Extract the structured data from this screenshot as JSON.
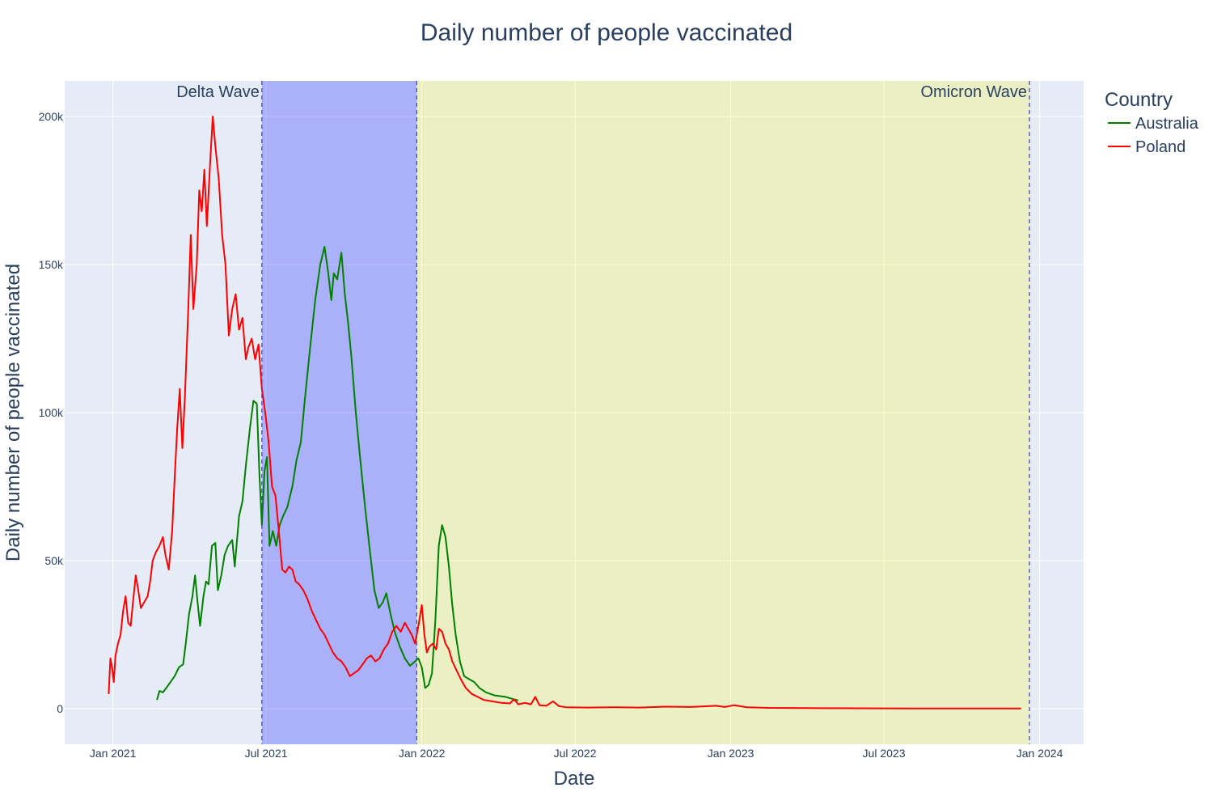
{
  "chart_data": {
    "type": "line",
    "title": "Daily number of people vaccinated",
    "xlabel": "Date",
    "ylabel": "Daily number of people vaccinated",
    "xlim": [
      "2020-11-05",
      "2024-02-22"
    ],
    "ylim": [
      -12000,
      212000
    ],
    "x_ticks": [
      {
        "date": "2021-01-01",
        "label": "Jan 2021"
      },
      {
        "date": "2021-07-01",
        "label": "Jul 2021"
      },
      {
        "date": "2022-01-01",
        "label": "Jan 2022"
      },
      {
        "date": "2022-07-01",
        "label": "Jul 2022"
      },
      {
        "date": "2023-01-01",
        "label": "Jan 2023"
      },
      {
        "date": "2023-07-01",
        "label": "Jul 2023"
      },
      {
        "date": "2024-01-01",
        "label": "Jan 2024"
      }
    ],
    "y_ticks": [
      {
        "value": 0,
        "label": "0"
      },
      {
        "value": 50000,
        "label": "50k"
      },
      {
        "value": 100000,
        "label": "100k"
      },
      {
        "value": 150000,
        "label": "150k"
      },
      {
        "value": 200000,
        "label": "200k"
      }
    ],
    "grid": true,
    "legend": {
      "title": "Country",
      "placement": "top-right"
    },
    "bands": [
      {
        "name": "Delta Wave",
        "start": "2021-06-26",
        "end": "2021-12-26",
        "color": "#0000ff",
        "opacity": 0.25,
        "label_position": "top-left"
      },
      {
        "name": "Omicron Wave",
        "start": "2021-12-26",
        "end": "2023-12-20",
        "color": "#ffff00",
        "opacity": 0.2,
        "label_position": "top-right"
      }
    ],
    "series": [
      {
        "name": "Australia",
        "color": "#008000",
        "points": [
          [
            "2021-02-22",
            3000
          ],
          [
            "2021-02-25",
            6000
          ],
          [
            "2021-03-01",
            5500
          ],
          [
            "2021-03-05",
            7000
          ],
          [
            "2021-03-10",
            9000
          ],
          [
            "2021-03-15",
            11000
          ],
          [
            "2021-03-20",
            14000
          ],
          [
            "2021-03-25",
            15000
          ],
          [
            "2021-03-28",
            22000
          ],
          [
            "2021-04-01",
            32000
          ],
          [
            "2021-04-05",
            38000
          ],
          [
            "2021-04-08",
            45000
          ],
          [
            "2021-04-11",
            36000
          ],
          [
            "2021-04-14",
            28000
          ],
          [
            "2021-04-18",
            38000
          ],
          [
            "2021-04-21",
            43000
          ],
          [
            "2021-04-24",
            42000
          ],
          [
            "2021-04-28",
            55000
          ],
          [
            "2021-05-02",
            56000
          ],
          [
            "2021-05-05",
            40000
          ],
          [
            "2021-05-09",
            45000
          ],
          [
            "2021-05-13",
            52000
          ],
          [
            "2021-05-17",
            55000
          ],
          [
            "2021-05-22",
            57000
          ],
          [
            "2021-05-25",
            48000
          ],
          [
            "2021-05-30",
            65000
          ],
          [
            "2021-06-03",
            70000
          ],
          [
            "2021-06-07",
            82000
          ],
          [
            "2021-06-12",
            95000
          ],
          [
            "2021-06-16",
            104000
          ],
          [
            "2021-06-20",
            103000
          ],
          [
            "2021-06-23",
            80000
          ],
          [
            "2021-06-26",
            62000
          ],
          [
            "2021-06-29",
            80000
          ],
          [
            "2021-07-02",
            85000
          ],
          [
            "2021-07-05",
            55000
          ],
          [
            "2021-07-09",
            60000
          ],
          [
            "2021-07-13",
            55000
          ],
          [
            "2021-07-17",
            62000
          ],
          [
            "2021-07-21",
            65000
          ],
          [
            "2021-07-26",
            68000
          ],
          [
            "2021-08-01",
            75000
          ],
          [
            "2021-08-06",
            84000
          ],
          [
            "2021-08-11",
            90000
          ],
          [
            "2021-08-16",
            105000
          ],
          [
            "2021-08-22",
            122000
          ],
          [
            "2021-08-28",
            138000
          ],
          [
            "2021-09-03",
            150000
          ],
          [
            "2021-09-08",
            156000
          ],
          [
            "2021-09-12",
            148000
          ],
          [
            "2021-09-16",
            138000
          ],
          [
            "2021-09-19",
            147000
          ],
          [
            "2021-09-23",
            145000
          ],
          [
            "2021-09-28",
            154000
          ],
          [
            "2021-10-02",
            140000
          ],
          [
            "2021-10-06",
            130000
          ],
          [
            "2021-10-10",
            118000
          ],
          [
            "2021-10-15",
            100000
          ],
          [
            "2021-10-20",
            85000
          ],
          [
            "2021-10-26",
            68000
          ],
          [
            "2021-10-31",
            55000
          ],
          [
            "2021-11-06",
            40000
          ],
          [
            "2021-11-11",
            34000
          ],
          [
            "2021-11-16",
            36000
          ],
          [
            "2021-11-20",
            39000
          ],
          [
            "2021-11-25",
            32000
          ],
          [
            "2021-11-30",
            26000
          ],
          [
            "2021-12-06",
            21000
          ],
          [
            "2021-12-12",
            17000
          ],
          [
            "2021-12-18",
            14500
          ],
          [
            "2021-12-24",
            16000
          ],
          [
            "2021-12-28",
            17000
          ],
          [
            "2022-01-01",
            14000
          ],
          [
            "2022-01-05",
            7000
          ],
          [
            "2022-01-09",
            8000
          ],
          [
            "2022-01-13",
            12000
          ],
          [
            "2022-01-17",
            30000
          ],
          [
            "2022-01-21",
            55000
          ],
          [
            "2022-01-25",
            62000
          ],
          [
            "2022-01-29",
            58000
          ],
          [
            "2022-02-02",
            48000
          ],
          [
            "2022-02-06",
            35000
          ],
          [
            "2022-02-10",
            25000
          ],
          [
            "2022-02-15",
            16000
          ],
          [
            "2022-02-20",
            11000
          ],
          [
            "2022-02-26",
            10000
          ],
          [
            "2022-03-04",
            9000
          ],
          [
            "2022-03-10",
            7000
          ],
          [
            "2022-03-18",
            5500
          ],
          [
            "2022-03-28",
            4500
          ],
          [
            "2022-04-10",
            4000
          ],
          [
            "2022-04-20",
            3200
          ],
          [
            "2022-04-25",
            2800
          ]
        ]
      },
      {
        "name": "Poland",
        "color": "#ff0000",
        "points": [
          [
            "2020-12-27",
            5000
          ],
          [
            "2020-12-29",
            17000
          ],
          [
            "2020-12-31",
            14000
          ],
          [
            "2021-01-02",
            9000
          ],
          [
            "2021-01-04",
            18000
          ],
          [
            "2021-01-07",
            22000
          ],
          [
            "2021-01-10",
            25000
          ],
          [
            "2021-01-13",
            33000
          ],
          [
            "2021-01-16",
            38000
          ],
          [
            "2021-01-19",
            29000
          ],
          [
            "2021-01-22",
            28000
          ],
          [
            "2021-01-25",
            37000
          ],
          [
            "2021-01-28",
            45000
          ],
          [
            "2021-01-31",
            40000
          ],
          [
            "2021-02-03",
            34000
          ],
          [
            "2021-02-07",
            36000
          ],
          [
            "2021-02-11",
            38000
          ],
          [
            "2021-02-14",
            43000
          ],
          [
            "2021-02-17",
            50000
          ],
          [
            "2021-02-21",
            53000
          ],
          [
            "2021-02-25",
            55000
          ],
          [
            "2021-03-01",
            58000
          ],
          [
            "2021-03-04",
            52000
          ],
          [
            "2021-03-08",
            47000
          ],
          [
            "2021-03-12",
            60000
          ],
          [
            "2021-03-15",
            78000
          ],
          [
            "2021-03-18",
            95000
          ],
          [
            "2021-03-21",
            108000
          ],
          [
            "2021-03-24",
            88000
          ],
          [
            "2021-03-27",
            105000
          ],
          [
            "2021-03-31",
            135000
          ],
          [
            "2021-04-03",
            160000
          ],
          [
            "2021-04-06",
            135000
          ],
          [
            "2021-04-10",
            150000
          ],
          [
            "2021-04-13",
            175000
          ],
          [
            "2021-04-16",
            168000
          ],
          [
            "2021-04-19",
            182000
          ],
          [
            "2021-04-22",
            163000
          ],
          [
            "2021-04-26",
            185000
          ],
          [
            "2021-04-29",
            200000
          ],
          [
            "2021-05-02",
            190000
          ],
          [
            "2021-05-06",
            179000
          ],
          [
            "2021-05-10",
            160000
          ],
          [
            "2021-05-14",
            150000
          ],
          [
            "2021-05-18",
            126000
          ],
          [
            "2021-05-22",
            135000
          ],
          [
            "2021-05-26",
            140000
          ],
          [
            "2021-05-30",
            128000
          ],
          [
            "2021-06-03",
            132000
          ],
          [
            "2021-06-07",
            118000
          ],
          [
            "2021-06-10",
            122000
          ],
          [
            "2021-06-14",
            125000
          ],
          [
            "2021-06-18",
            118000
          ],
          [
            "2021-06-22",
            123000
          ],
          [
            "2021-06-26",
            108000
          ],
          [
            "2021-06-30",
            100000
          ],
          [
            "2021-07-04",
            90000
          ],
          [
            "2021-07-08",
            75000
          ],
          [
            "2021-07-12",
            72000
          ],
          [
            "2021-07-16",
            60000
          ],
          [
            "2021-07-20",
            47000
          ],
          [
            "2021-07-24",
            46000
          ],
          [
            "2021-07-28",
            48000
          ],
          [
            "2021-08-01",
            47000
          ],
          [
            "2021-08-05",
            43000
          ],
          [
            "2021-08-09",
            42000
          ],
          [
            "2021-08-14",
            40000
          ],
          [
            "2021-08-19",
            37000
          ],
          [
            "2021-08-24",
            33000
          ],
          [
            "2021-08-29",
            30000
          ],
          [
            "2021-09-03",
            27000
          ],
          [
            "2021-09-08",
            25000
          ],
          [
            "2021-09-13",
            22000
          ],
          [
            "2021-09-18",
            19000
          ],
          [
            "2021-09-23",
            17000
          ],
          [
            "2021-09-28",
            16000
          ],
          [
            "2021-10-03",
            14000
          ],
          [
            "2021-10-08",
            11000
          ],
          [
            "2021-10-13",
            12000
          ],
          [
            "2021-10-18",
            13000
          ],
          [
            "2021-10-23",
            15000
          ],
          [
            "2021-10-28",
            17000
          ],
          [
            "2021-11-02",
            18000
          ],
          [
            "2021-11-07",
            16000
          ],
          [
            "2021-11-12",
            17000
          ],
          [
            "2021-11-17",
            20000
          ],
          [
            "2021-11-22",
            22000
          ],
          [
            "2021-11-27",
            26000
          ],
          [
            "2021-12-02",
            28000
          ],
          [
            "2021-12-07",
            26000
          ],
          [
            "2021-12-12",
            29000
          ],
          [
            "2021-12-16",
            27000
          ],
          [
            "2021-12-20",
            25000
          ],
          [
            "2021-12-24",
            22000
          ],
          [
            "2021-12-28",
            28000
          ],
          [
            "2022-01-01",
            35000
          ],
          [
            "2022-01-04",
            25000
          ],
          [
            "2022-01-07",
            19000
          ],
          [
            "2022-01-10",
            21000
          ],
          [
            "2022-01-14",
            22000
          ],
          [
            "2022-01-18",
            20000
          ],
          [
            "2022-01-21",
            27000
          ],
          [
            "2022-01-25",
            26000
          ],
          [
            "2022-01-29",
            22000
          ],
          [
            "2022-02-02",
            20000
          ],
          [
            "2022-02-06",
            16000
          ],
          [
            "2022-02-11",
            13000
          ],
          [
            "2022-02-16",
            10000
          ],
          [
            "2022-02-22",
            7000
          ],
          [
            "2022-03-01",
            5000
          ],
          [
            "2022-03-08",
            4000
          ],
          [
            "2022-03-15",
            3000
          ],
          [
            "2022-03-25",
            2500
          ],
          [
            "2022-04-05",
            2000
          ],
          [
            "2022-04-15",
            1800
          ],
          [
            "2022-04-20",
            3200
          ],
          [
            "2022-04-25",
            1500
          ],
          [
            "2022-05-03",
            2000
          ],
          [
            "2022-05-10",
            1500
          ],
          [
            "2022-05-15",
            4000
          ],
          [
            "2022-05-20",
            1200
          ],
          [
            "2022-05-28",
            1000
          ],
          [
            "2022-06-05",
            2500
          ],
          [
            "2022-06-12",
            900
          ],
          [
            "2022-06-20",
            500
          ],
          [
            "2022-07-15",
            400
          ],
          [
            "2022-08-15",
            500
          ],
          [
            "2022-09-15",
            400
          ],
          [
            "2022-10-15",
            700
          ],
          [
            "2022-11-15",
            600
          ],
          [
            "2022-12-15",
            1000
          ],
          [
            "2022-12-25",
            600
          ],
          [
            "2023-01-05",
            1200
          ],
          [
            "2023-01-20",
            500
          ],
          [
            "2023-02-15",
            300
          ],
          [
            "2023-04-01",
            200
          ],
          [
            "2023-06-01",
            150
          ],
          [
            "2023-08-01",
            100
          ],
          [
            "2023-10-01",
            100
          ],
          [
            "2023-12-01",
            100
          ],
          [
            "2023-12-10",
            100
          ]
        ]
      }
    ]
  }
}
